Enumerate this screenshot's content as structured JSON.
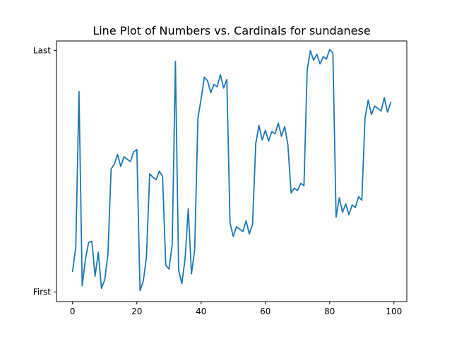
{
  "chart_data": {
    "type": "line",
    "title": "Line Plot of Numbers vs. Cardinals for sundanese",
    "xlabel": "",
    "ylabel": "",
    "xlim": [
      -5,
      104
    ],
    "ylim": [
      -0.04,
      1.04
    ],
    "grid": false,
    "legend": "none",
    "x_ticks": [
      {
        "value": 0,
        "label": "0"
      },
      {
        "value": 20,
        "label": "20"
      },
      {
        "value": 40,
        "label": "40"
      },
      {
        "value": 60,
        "label": "60"
      },
      {
        "value": 80,
        "label": "80"
      },
      {
        "value": 100,
        "label": "100"
      }
    ],
    "y_ticks": [
      {
        "value": 0,
        "label": "First"
      },
      {
        "value": 1,
        "label": "Last"
      }
    ],
    "series": [
      {
        "color": "#1f77b4",
        "x": [
          0,
          1,
          2,
          3,
          4,
          5,
          6,
          7,
          8,
          9,
          10,
          11,
          12,
          13,
          14,
          15,
          16,
          17,
          18,
          19,
          20,
          21,
          22,
          23,
          24,
          25,
          26,
          27,
          28,
          29,
          30,
          31,
          32,
          33,
          34,
          35,
          36,
          37,
          38,
          39,
          40,
          41,
          42,
          43,
          44,
          45,
          46,
          47,
          48,
          49,
          50,
          51,
          52,
          53,
          54,
          55,
          56,
          57,
          58,
          59,
          60,
          61,
          62,
          63,
          64,
          65,
          66,
          67,
          68,
          69,
          70,
          71,
          72,
          73,
          74,
          75,
          76,
          77,
          78,
          79,
          80,
          81,
          82,
          83,
          84,
          85,
          86,
          87,
          88,
          89,
          90,
          91,
          92,
          93,
          94,
          95,
          96,
          97,
          98,
          99
        ],
        "y": [
          0.085,
          0.185,
          0.83,
          0.025,
          0.135,
          0.205,
          0.21,
          0.065,
          0.165,
          0.015,
          0.05,
          0.155,
          0.51,
          0.53,
          0.57,
          0.52,
          0.56,
          0.55,
          0.54,
          0.58,
          0.59,
          0.005,
          0.045,
          0.145,
          0.49,
          0.475,
          0.465,
          0.5,
          0.48,
          0.11,
          0.095,
          0.195,
          0.955,
          0.09,
          0.035,
          0.135,
          0.345,
          0.075,
          0.175,
          0.72,
          0.8,
          0.89,
          0.875,
          0.825,
          0.86,
          0.85,
          0.9,
          0.845,
          0.88,
          0.285,
          0.23,
          0.27,
          0.26,
          0.25,
          0.295,
          0.24,
          0.28,
          0.615,
          0.69,
          0.63,
          0.67,
          0.625,
          0.665,
          0.655,
          0.7,
          0.645,
          0.685,
          0.61,
          0.41,
          0.43,
          0.42,
          0.45,
          0.44,
          0.92,
          1.0,
          0.96,
          0.985,
          0.945,
          0.975,
          0.965,
          1.005,
          0.99,
          0.31,
          0.39,
          0.33,
          0.365,
          0.32,
          0.36,
          0.35,
          0.395,
          0.38,
          0.72,
          0.795,
          0.735,
          0.77,
          0.76,
          0.75,
          0.805,
          0.745,
          0.785
        ]
      }
    ]
  }
}
